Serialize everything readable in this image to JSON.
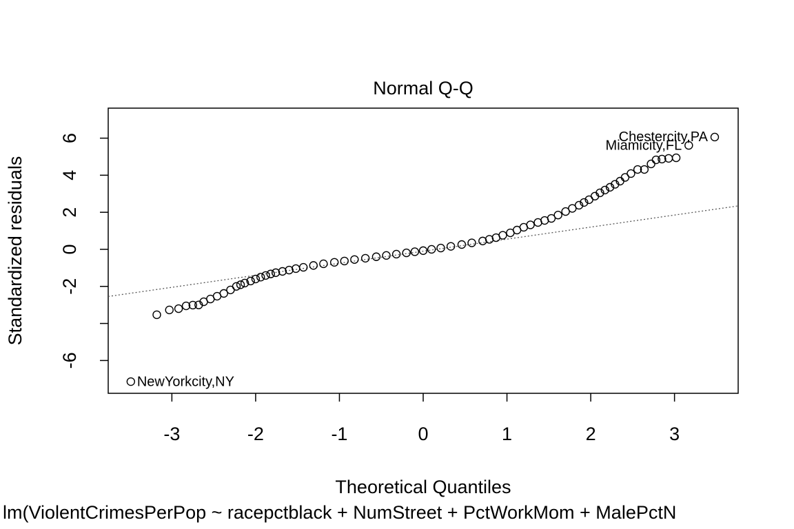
{
  "chart_data": {
    "type": "scatter",
    "title": "Normal Q-Q",
    "xlabel": "Theoretical Quantiles",
    "ylabel": "Standardized residuals",
    "subtitle": "lm(ViolentCrimesPerPop ~ racepctblack + NumStreet + PctWorkMom + MalePctN",
    "xlim": [
      -3.76,
      3.76
    ],
    "ylim": [
      -7.77,
      7.62
    ],
    "xticks": [
      -3,
      -2,
      -1,
      0,
      1,
      2,
      3
    ],
    "yticks": [
      -6,
      {
        "value": -4,
        "label": null
      },
      -2,
      0,
      2,
      4,
      6
    ],
    "qq_line": {
      "slope": 0.65,
      "intercept": -0.1
    },
    "x": [
      -3.49,
      -3.18,
      -3.03,
      -2.92,
      -2.83,
      -2.75,
      -2.68,
      -2.62,
      -2.54,
      -2.46,
      -2.38,
      -2.3,
      -2.23,
      -2.18,
      -2.13,
      -2.06,
      -2.0,
      -1.94,
      -1.88,
      -1.82,
      -1.76,
      -1.68,
      -1.6,
      -1.52,
      -1.43,
      -1.31,
      -1.19,
      -1.06,
      -0.94,
      -0.82,
      -0.69,
      -0.56,
      -0.44,
      -0.32,
      -0.2,
      -0.1,
      0.0,
      0.1,
      0.21,
      0.33,
      0.46,
      0.58,
      0.71,
      0.79,
      0.87,
      0.95,
      1.04,
      1.12,
      1.2,
      1.28,
      1.37,
      1.45,
      1.53,
      1.61,
      1.7,
      1.78,
      1.86,
      1.92,
      1.98,
      2.05,
      2.11,
      2.17,
      2.23,
      2.29,
      2.35,
      2.41,
      2.48,
      2.56,
      2.64,
      2.72,
      2.78,
      2.85,
      2.93,
      3.02,
      3.17,
      3.48
    ],
    "values": [
      -7.14,
      -3.53,
      -3.27,
      -3.2,
      -3.05,
      -3.01,
      -3.0,
      -2.83,
      -2.68,
      -2.53,
      -2.38,
      -2.19,
      -2.0,
      -1.91,
      -1.82,
      -1.71,
      -1.6,
      -1.5,
      -1.41,
      -1.33,
      -1.26,
      -1.19,
      -1.12,
      -1.04,
      -0.97,
      -0.87,
      -0.78,
      -0.7,
      -0.63,
      -0.55,
      -0.48,
      -0.4,
      -0.33,
      -0.26,
      -0.19,
      -0.13,
      -0.07,
      0.0,
      0.07,
      0.16,
      0.26,
      0.35,
      0.45,
      0.54,
      0.63,
      0.76,
      0.89,
      1.04,
      1.19,
      1.32,
      1.45,
      1.56,
      1.67,
      1.85,
      2.04,
      2.21,
      2.38,
      2.53,
      2.68,
      2.87,
      3.05,
      3.2,
      3.35,
      3.51,
      3.68,
      3.88,
      4.09,
      4.31,
      4.31,
      4.61,
      4.83,
      4.87,
      4.91,
      4.94,
      5.61,
      6.06
    ],
    "point_labels": [
      "NewYorkcity,NY",
      null,
      null,
      null,
      null,
      null,
      null,
      null,
      null,
      null,
      null,
      null,
      null,
      null,
      null,
      null,
      null,
      null,
      null,
      null,
      null,
      null,
      null,
      null,
      null,
      null,
      null,
      null,
      null,
      null,
      null,
      null,
      null,
      null,
      null,
      null,
      null,
      null,
      null,
      null,
      null,
      null,
      null,
      null,
      null,
      null,
      null,
      null,
      null,
      null,
      null,
      null,
      null,
      null,
      null,
      null,
      null,
      null,
      null,
      null,
      null,
      null,
      null,
      null,
      null,
      null,
      null,
      null,
      null,
      null,
      null,
      null,
      null,
      null,
      "Miamicity,FL",
      "Chestercity,PA"
    ]
  }
}
